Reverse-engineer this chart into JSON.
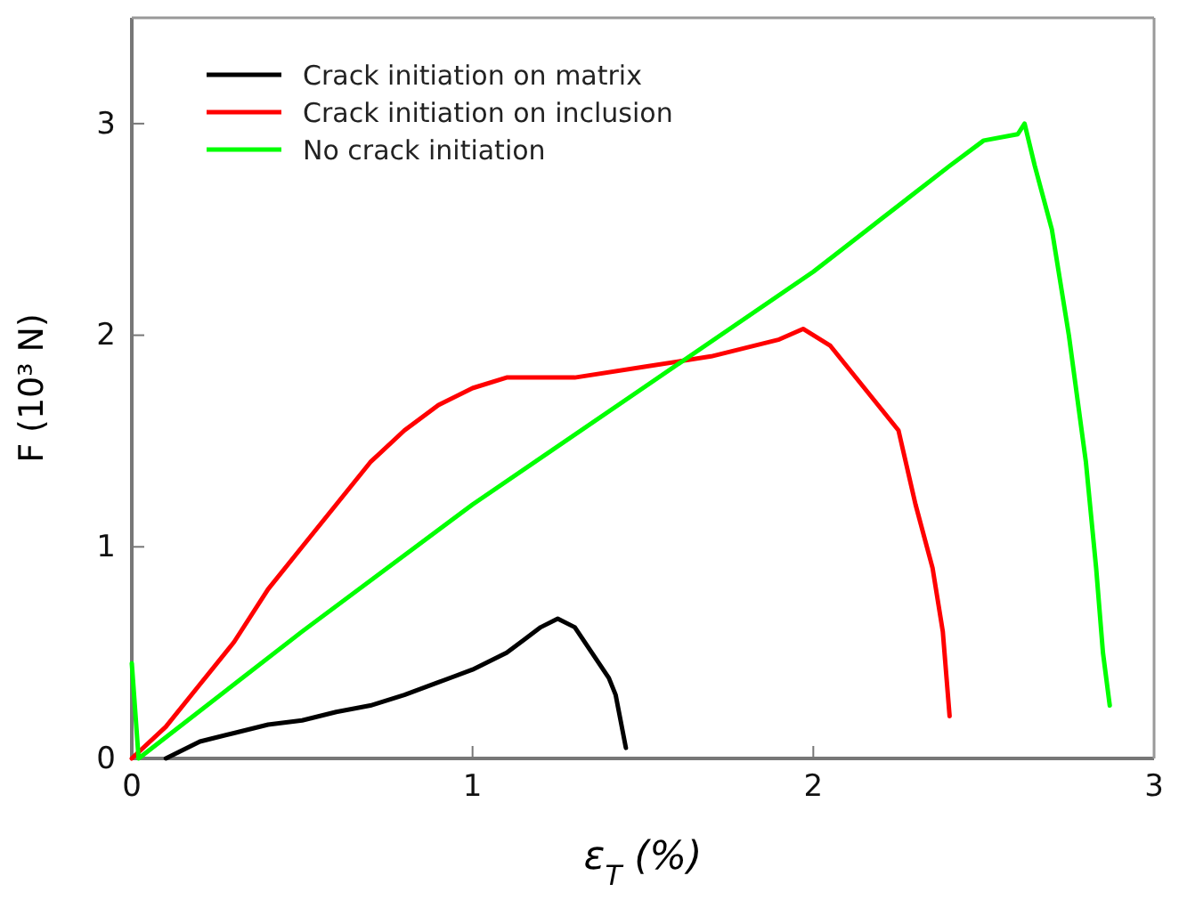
{
  "chart_data": {
    "type": "line",
    "xlabel": "ε$_{T}$ (%)",
    "ylabel": "F (10³ N)",
    "xlim": [
      0,
      3
    ],
    "ylim": [
      0,
      3.5
    ],
    "xticks": [
      0,
      1,
      2,
      3
    ],
    "yticks": [
      0,
      1,
      2,
      3
    ],
    "grid": false,
    "legend": "top left",
    "marker": "none",
    "line_style": "solid",
    "series": [
      {
        "name": "Crack initiation on matrix",
        "color": "#000000",
        "x": [
          0.1,
          0.2,
          0.3,
          0.4,
          0.5,
          0.6,
          0.7,
          0.8,
          0.9,
          1.0,
          1.1,
          1.15,
          1.2,
          1.25,
          1.3,
          1.35,
          1.4,
          1.42,
          1.45
        ],
        "values": [
          0,
          0.08,
          0.12,
          0.16,
          0.18,
          0.22,
          0.25,
          0.3,
          0.36,
          0.42,
          0.5,
          0.56,
          0.62,
          0.66,
          0.62,
          0.5,
          0.38,
          0.3,
          0.05
        ]
      },
      {
        "name": "Crack initiation on inclusion",
        "color": "#ff0000",
        "x": [
          0,
          0.1,
          0.2,
          0.3,
          0.4,
          0.5,
          0.6,
          0.7,
          0.8,
          0.9,
          1.0,
          1.1,
          1.3,
          1.5,
          1.7,
          1.9,
          1.97,
          2.05,
          2.1,
          2.2,
          2.25,
          2.3,
          2.35,
          2.38,
          2.4
        ],
        "values": [
          0,
          0.15,
          0.35,
          0.55,
          0.8,
          1.0,
          1.2,
          1.4,
          1.55,
          1.67,
          1.75,
          1.8,
          1.8,
          1.85,
          1.9,
          1.98,
          2.03,
          1.95,
          1.85,
          1.65,
          1.55,
          1.2,
          0.9,
          0.6,
          0.2
        ]
      },
      {
        "name": "No crack initiation",
        "color": "#00ff00",
        "x": [
          0,
          0.02,
          0.1,
          0.5,
          1.0,
          1.5,
          2.0,
          2.2,
          2.4,
          2.5,
          2.6,
          2.62,
          2.65,
          2.7,
          2.75,
          2.8,
          2.83,
          2.85,
          2.87
        ],
        "values": [
          0.45,
          0,
          0.1,
          0.6,
          1.2,
          1.75,
          2.3,
          2.55,
          2.8,
          2.92,
          2.95,
          3.0,
          2.8,
          2.5,
          2.0,
          1.4,
          0.9,
          0.5,
          0.25
        ]
      }
    ]
  }
}
